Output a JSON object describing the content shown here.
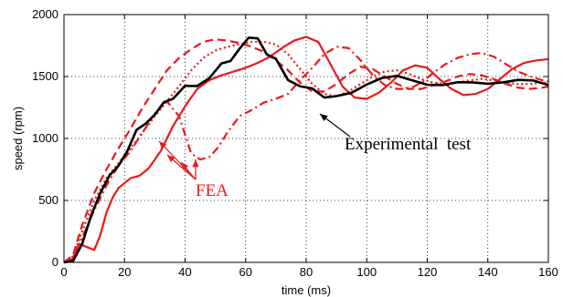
{
  "chart_data": {
    "type": "line",
    "xlabel": "time (ms)",
    "ylabel": "speed (rpm)",
    "xlim": [
      0,
      160
    ],
    "ylim": [
      0,
      2000
    ],
    "xticks": [
      "0",
      "20",
      "40",
      "60",
      "80",
      "100",
      "120",
      "140",
      "160"
    ],
    "yticks": [
      "0",
      "500",
      "1000",
      "1500",
      "2000"
    ],
    "grid": "dotted",
    "annotations": {
      "experimental": "Experimental  test",
      "fea": "FEA"
    },
    "colors": {
      "experimental": "#000000",
      "fea": "#e8191c"
    },
    "series": [
      {
        "style": "solid-black",
        "x": [
          0,
          3,
          6,
          9,
          12,
          15,
          18,
          21,
          24,
          27,
          30,
          33,
          36,
          40,
          44,
          48,
          52,
          55,
          58,
          61,
          64,
          67,
          70,
          74,
          78,
          82,
          86,
          90,
          95,
          100,
          105,
          110,
          115,
          120,
          125,
          130,
          135,
          140,
          145,
          150,
          155,
          160
        ],
        "y": [
          0,
          10,
          150,
          380,
          560,
          700,
          780,
          880,
          1010,
          1120,
          1200,
          1250,
          1320,
          1410,
          1470,
          1530,
          1570,
          1640,
          1720,
          1750,
          1790,
          1710,
          1630,
          1530,
          1450,
          1380,
          1340,
          1360,
          1380,
          1430,
          1470,
          1490,
          1470,
          1450,
          1450,
          1460,
          1440,
          1420,
          1440,
          1480,
          1490,
          1450
        ]
      },
      {
        "style": "solid-red",
        "x": [
          0,
          3,
          5,
          8,
          10,
          12,
          14,
          16,
          18,
          20,
          22,
          25,
          28,
          32,
          36,
          40,
          44,
          48,
          52,
          56,
          60,
          64,
          68,
          72,
          76,
          80,
          84,
          88,
          92,
          96,
          100,
          104,
          108,
          112,
          116,
          120,
          124,
          128,
          132,
          136,
          140,
          144,
          148,
          152,
          156,
          160
        ],
        "y": [
          0,
          30,
          150,
          120,
          100,
          220,
          400,
          520,
          600,
          640,
          680,
          700,
          760,
          900,
          1100,
          1260,
          1400,
          1470,
          1510,
          1540,
          1570,
          1610,
          1660,
          1730,
          1790,
          1820,
          1780,
          1600,
          1420,
          1330,
          1320,
          1370,
          1450,
          1550,
          1590,
          1570,
          1480,
          1400,
          1350,
          1360,
          1400,
          1480,
          1560,
          1610,
          1630,
          1640
        ]
      },
      {
        "style": "dashed-red",
        "x": [
          0,
          3,
          6,
          10,
          14,
          18,
          22,
          26,
          30,
          34,
          38,
          42,
          46,
          50,
          54,
          58,
          62,
          66,
          70,
          74,
          78,
          82,
          86,
          90,
          94,
          98,
          102,
          106,
          110,
          114,
          118,
          122,
          126,
          130,
          134,
          138,
          142,
          146,
          150,
          154,
          158,
          160
        ],
        "y": [
          0,
          60,
          300,
          560,
          750,
          920,
          1080,
          1250,
          1400,
          1550,
          1650,
          1720,
          1780,
          1800,
          1790,
          1770,
          1740,
          1700,
          1630,
          1550,
          1450,
          1380,
          1380,
          1440,
          1520,
          1580,
          1560,
          1500,
          1440,
          1400,
          1400,
          1430,
          1460,
          1500,
          1520,
          1510,
          1480,
          1440,
          1410,
          1400,
          1410,
          1420
        ]
      },
      {
        "style": "dashdot-red",
        "x": [
          0,
          3,
          6,
          10,
          14,
          18,
          22,
          26,
          30,
          34,
          38,
          42,
          45,
          48,
          51,
          54,
          58,
          62,
          66,
          70,
          74,
          78,
          82,
          86,
          90,
          94,
          98,
          102,
          106,
          110,
          114,
          118,
          122,
          126,
          130,
          134,
          138,
          142,
          146,
          150,
          154,
          158,
          160
        ],
        "y": [
          0,
          40,
          200,
          420,
          620,
          780,
          900,
          1050,
          1200,
          1300,
          1180,
          880,
          830,
          850,
          930,
          1050,
          1180,
          1230,
          1290,
          1320,
          1360,
          1470,
          1570,
          1680,
          1740,
          1730,
          1630,
          1510,
          1430,
          1400,
          1400,
          1450,
          1530,
          1600,
          1650,
          1680,
          1690,
          1660,
          1600,
          1540,
          1500,
          1470,
          1460
        ]
      },
      {
        "style": "dotted-red",
        "x": [
          0,
          3,
          6,
          10,
          14,
          18,
          22,
          26,
          30,
          34,
          38,
          42,
          46,
          50,
          54,
          58,
          62,
          66,
          70,
          74,
          78,
          82,
          86,
          90,
          94,
          98,
          102,
          106,
          110,
          114,
          118,
          122,
          126,
          130,
          134,
          138,
          142,
          146,
          150,
          154,
          158,
          160
        ],
        "y": [
          0,
          50,
          250,
          500,
          680,
          800,
          920,
          1050,
          1180,
          1300,
          1420,
          1550,
          1650,
          1710,
          1740,
          1760,
          1780,
          1780,
          1760,
          1680,
          1560,
          1440,
          1360,
          1340,
          1380,
          1440,
          1500,
          1540,
          1550,
          1520,
          1480,
          1450,
          1440,
          1450,
          1470,
          1480,
          1470,
          1450,
          1440,
          1440,
          1450,
          1450
        ]
      }
    ]
  }
}
